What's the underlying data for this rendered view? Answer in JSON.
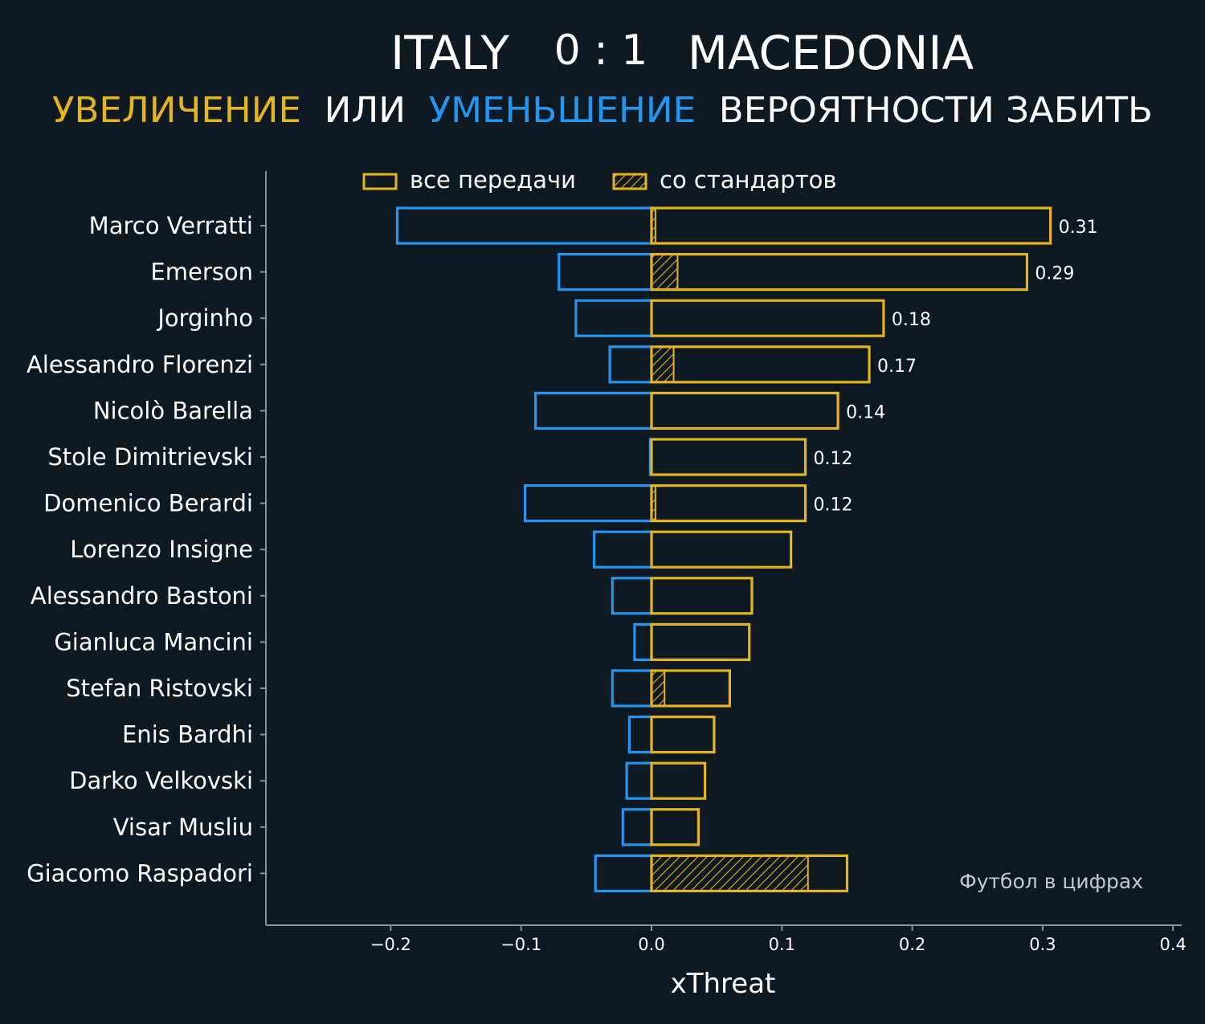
{
  "header": {
    "team_home": "ITALY",
    "score": "0 : 1",
    "team_away": "MACEDONIA"
  },
  "subtitle": {
    "part_increase": "УВЕЛИЧЕНИЕ",
    "part_or": "ИЛИ",
    "part_decrease": "УМЕНЬШЕНИЕ",
    "part_rest": "ВЕРОЯТНОСТИ ЗАБИТЬ"
  },
  "legend": {
    "all_passes": "все передачи",
    "set_pieces": "со стандартов"
  },
  "credit": "Футбол в цифрах",
  "colors": {
    "background": "#0f1922",
    "increase": "#e5b420",
    "decrease": "#2196f3",
    "text": "#ffffff",
    "axis": "#8a9199"
  },
  "chart_data": {
    "type": "bar",
    "orientation": "horizontal",
    "xlabel": "xThreat",
    "xlim": [
      -0.3,
      0.4
    ],
    "xticks": [
      -0.2,
      -0.1,
      0.0,
      0.1,
      0.2,
      0.3,
      0.4
    ],
    "xtick_labels": [
      "−0.2",
      "−0.1",
      "0.0",
      "0.1",
      "0.2",
      "0.3",
      "0.4"
    ],
    "grid": false,
    "legend_position": "top",
    "categories": [
      "Marco Verratti",
      "Emerson",
      "Jorginho",
      "Alessandro Florenzi",
      "Nicolò Barella",
      "Stole Dimitrievski",
      "Domenico Berardi",
      "Lorenzo Insigne",
      "Alessandro Bastoni",
      "Gianluca Mancini",
      "Stefan Ristovski",
      "Enis Bardhi",
      "Darko Velkovski",
      "Visar Musliu",
      "Giacomo Raspadori"
    ],
    "series": [
      {
        "name": "все передачи",
        "role": "positive",
        "values": [
          0.306,
          0.288,
          0.178,
          0.167,
          0.143,
          0.118,
          0.118,
          0.107,
          0.077,
          0.075,
          0.06,
          0.048,
          0.041,
          0.036,
          0.15
        ]
      },
      {
        "name": "negative",
        "role": "negative",
        "values": [
          -0.195,
          -0.071,
          -0.058,
          -0.032,
          -0.089,
          -0.001,
          -0.097,
          -0.044,
          -0.03,
          -0.013,
          -0.03,
          -0.017,
          -0.019,
          -0.022,
          -0.043
        ]
      },
      {
        "name": "со стандартов",
        "role": "set_pieces",
        "values": [
          0.003,
          0.02,
          0.0,
          0.017,
          0.0,
          0.0,
          0.003,
          0.0,
          0.0,
          0.0,
          0.01,
          0.0,
          0.0,
          0.0,
          0.12
        ]
      }
    ],
    "data_labels": [
      "0.31",
      "0.29",
      "0.18",
      "0.17",
      "0.14",
      "0.12",
      "0.12",
      "",
      "",
      "",
      "",
      "",
      "",
      "",
      ""
    ]
  }
}
